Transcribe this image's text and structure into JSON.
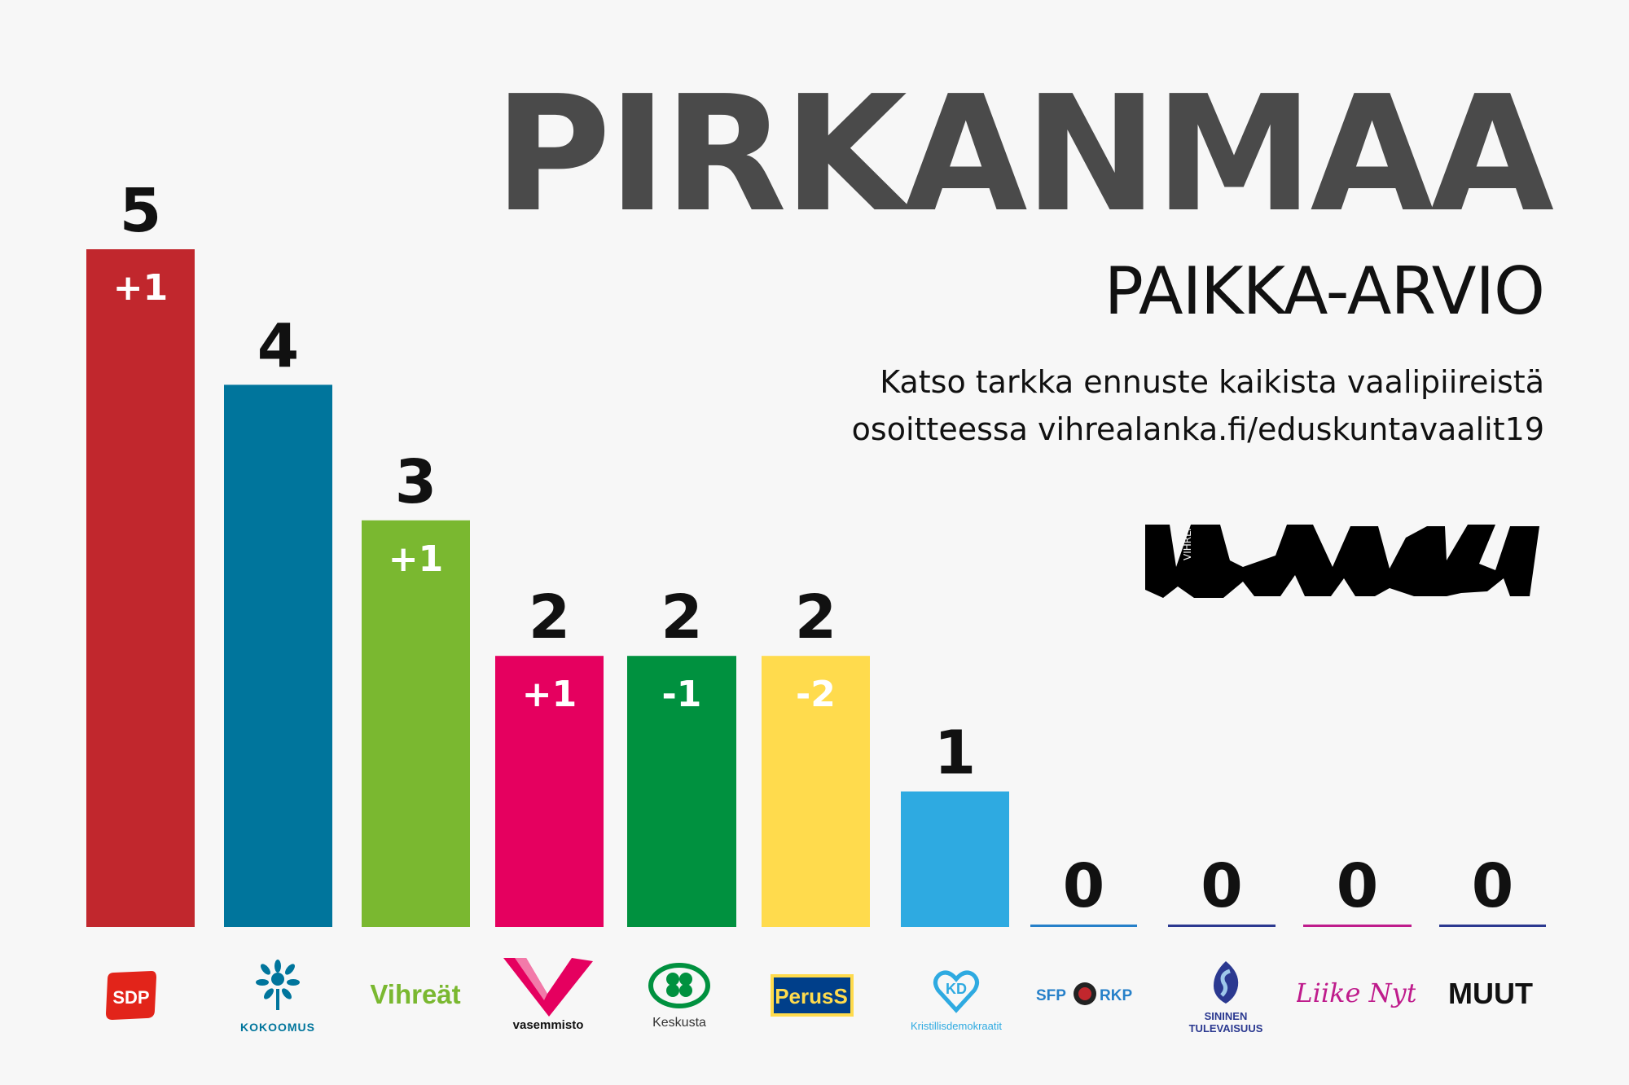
{
  "header": {
    "title": "PIRKANMAA",
    "subtitle": "PAIKKA-ARVIO",
    "info_line1": "Katso tarkka ennuste kaikista vaalipiireistä",
    "info_line2": "osoitteessa vihrealanka.fi/eduskuntavaalit19",
    "logo_text": "LANKA",
    "logo_small_text": "VIHREÄ"
  },
  "chart_data": {
    "type": "bar",
    "categories": [
      "SDP",
      "Kokoomus",
      "Vihreät",
      "Vasemmisto",
      "Keskusta",
      "Perussuomalaiset",
      "Kristillisdemokraatit",
      "SFP RKP",
      "Sininen tulevaisuus",
      "Liike Nyt",
      "MUUT"
    ],
    "values": [
      5,
      4,
      3,
      2,
      2,
      2,
      1,
      0,
      0,
      0,
      0
    ],
    "changes": [
      "+1",
      "",
      "+1",
      "+1",
      "-1",
      "-2",
      "",
      "",
      "",
      "",
      ""
    ],
    "colors": [
      "#c1272d",
      "#00759c",
      "#7ab830",
      "#e5005f",
      "#00913f",
      "#ffdb4d",
      "#2eaae1",
      "#2680c9",
      "#2b3990",
      "#bf1c8c",
      "#2b3990"
    ],
    "ylim": [
      0,
      5
    ]
  },
  "party_logos": {
    "sdp": "SDP",
    "kokoomus": "KOKOOMUS",
    "vihreat": "Vihreät",
    "vasemmisto": "vasemmisto",
    "keskusta": "Keskusta",
    "perus": "PerusS",
    "kd": "Kristillisdemokraatit",
    "sfp_left": "SFP",
    "sfp_right": "RKP",
    "sininen1": "SININEN",
    "sininen2": "TULEVAISUUS",
    "liike": "Liike Nyt",
    "muut": "MUUT"
  }
}
